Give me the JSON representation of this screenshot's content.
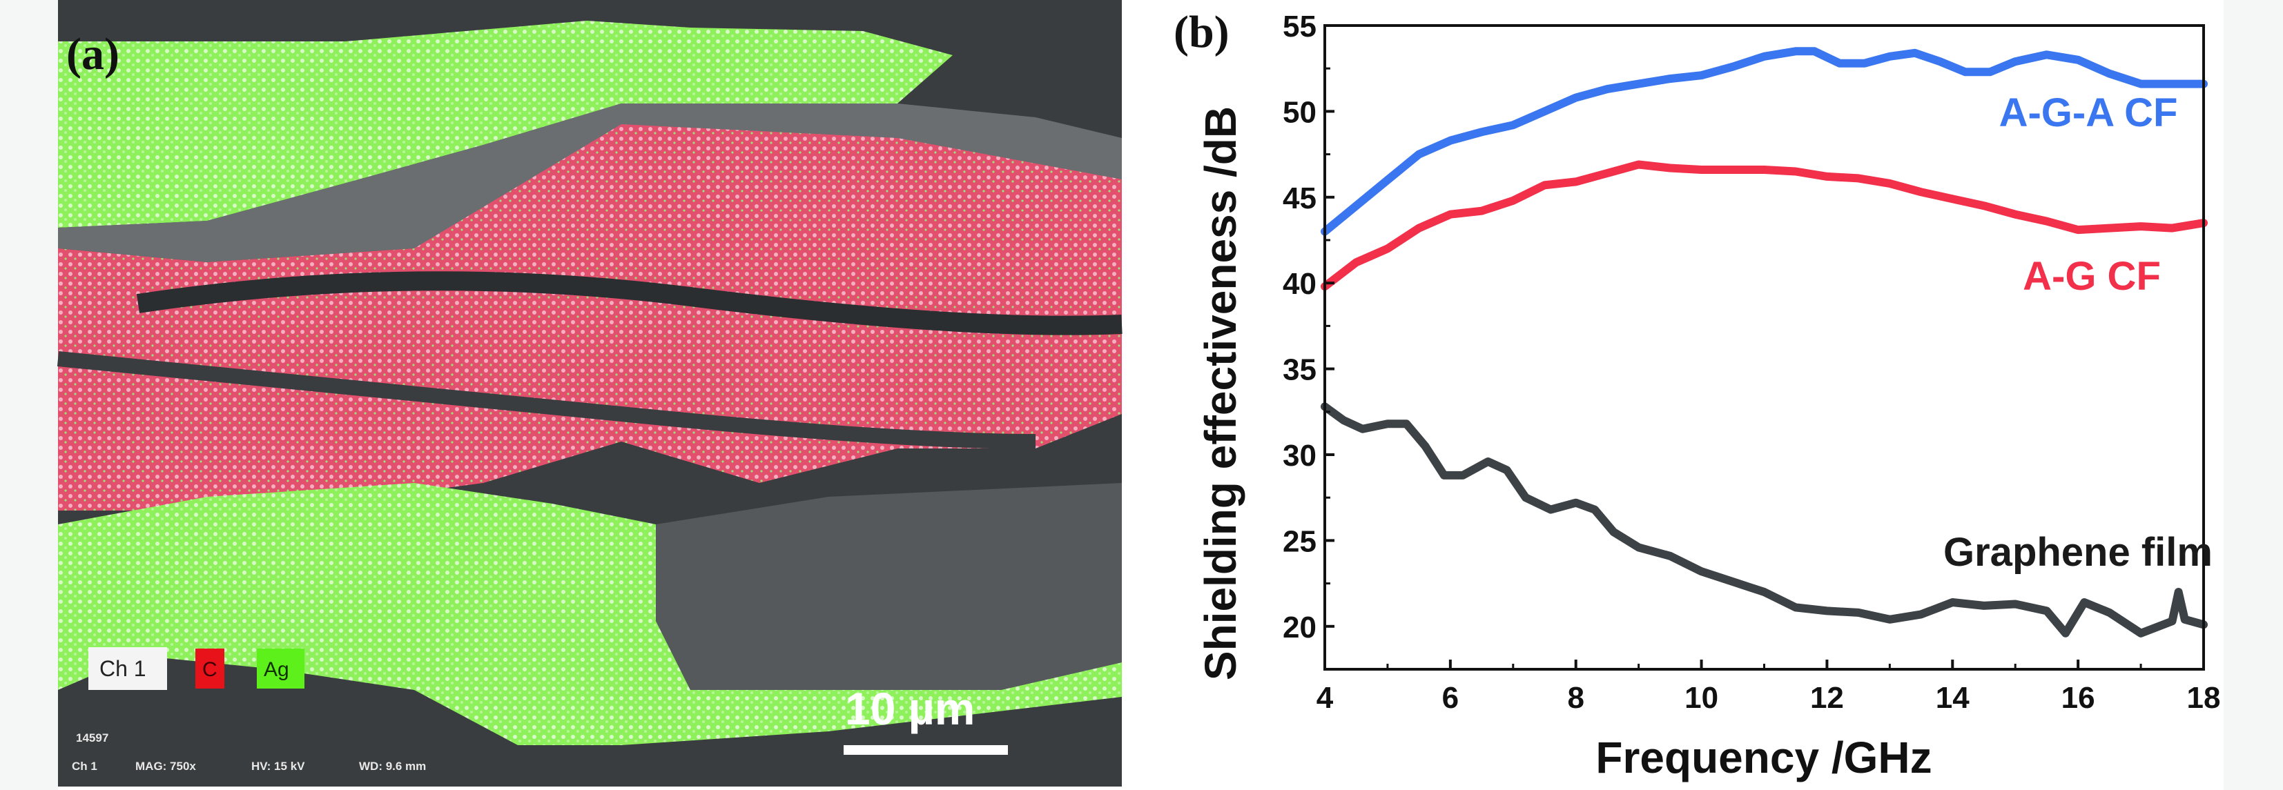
{
  "panel_a": {
    "tag": "(a)",
    "legend": {
      "channel": "Ch 1",
      "elements": [
        {
          "label": "C",
          "color": "#e8121b"
        },
        {
          "label": "Ag",
          "color": "#5ef01a"
        }
      ]
    },
    "scale_bar": "10 µm",
    "footer": {
      "id": "14597",
      "channel": "Ch 1",
      "mag": "MAG: 750x",
      "hv": "HV: 15 kV",
      "wd": "WD: 9.6 mm"
    }
  },
  "panel_b": {
    "tag": "(b)"
  },
  "chart_data": {
    "type": "line",
    "title": "",
    "xlabel": "Frequency /GHz",
    "ylabel": "Shielding effectiveness /dB",
    "xlim": [
      4,
      18
    ],
    "ylim": [
      17.5,
      55
    ],
    "xticks": [
      4,
      6,
      8,
      10,
      12,
      14,
      16,
      18
    ],
    "yticks": [
      20,
      25,
      30,
      35,
      40,
      45,
      50,
      55
    ],
    "grid": false,
    "legend": "inline labels on right",
    "series": [
      {
        "name": "A-G-A CF",
        "color": "#3a76f0",
        "x": [
          4,
          4.5,
          5,
          5.5,
          6,
          6.5,
          7,
          7.5,
          8,
          8.5,
          9,
          9.5,
          10,
          10.5,
          11,
          11.5,
          11.8,
          12.2,
          12.6,
          13,
          13.4,
          13.8,
          14.2,
          14.6,
          15,
          15.5,
          16,
          16.5,
          17,
          17.5,
          18
        ],
        "y": [
          43,
          44.5,
          46,
          47.5,
          48.3,
          48.8,
          49.2,
          50,
          50.8,
          51.3,
          51.6,
          51.9,
          52.1,
          52.6,
          53.2,
          53.5,
          53.5,
          52.8,
          52.8,
          53.2,
          53.4,
          52.9,
          52.3,
          52.3,
          52.9,
          53.3,
          53.0,
          52.2,
          51.6,
          51.6,
          51.6
        ]
      },
      {
        "name": "A-G CF",
        "color": "#f2304a",
        "x": [
          4,
          4.5,
          5,
          5.5,
          6,
          6.5,
          7,
          7.5,
          8,
          8.5,
          9,
          9.5,
          10,
          10.5,
          11,
          11.5,
          12,
          12.5,
          13,
          13.5,
          14,
          14.5,
          15,
          15.5,
          16,
          16.5,
          17,
          17.5,
          18
        ],
        "y": [
          39.8,
          41.2,
          42,
          43.2,
          44,
          44.2,
          44.8,
          45.7,
          45.9,
          46.4,
          46.9,
          46.7,
          46.6,
          46.6,
          46.6,
          46.5,
          46.2,
          46.1,
          45.8,
          45.3,
          44.9,
          44.5,
          44,
          43.6,
          43.1,
          43.2,
          43.3,
          43.2,
          43.5
        ]
      },
      {
        "name": "Graphene film",
        "color": "#3c4246",
        "x": [
          4,
          4.3,
          4.6,
          5,
          5.3,
          5.6,
          5.9,
          6.2,
          6.6,
          6.9,
          7.2,
          7.6,
          8,
          8.3,
          8.6,
          9,
          9.5,
          10,
          10.5,
          11,
          11.5,
          12,
          12.5,
          13,
          13.5,
          14,
          14.5,
          15,
          15.5,
          15.8,
          16.1,
          16.5,
          17,
          17.5,
          17.6,
          17.7,
          18
        ],
        "y": [
          32.8,
          32,
          31.5,
          31.8,
          31.8,
          30.5,
          28.8,
          28.8,
          29.6,
          29.1,
          27.5,
          26.8,
          27.2,
          26.8,
          25.5,
          24.6,
          24.1,
          23.2,
          22.6,
          22,
          21.1,
          20.9,
          20.8,
          20.4,
          20.7,
          21.4,
          21.2,
          21.3,
          20.9,
          19.6,
          21.4,
          20.8,
          19.6,
          20.3,
          22,
          20.4,
          20.1
        ]
      }
    ]
  }
}
